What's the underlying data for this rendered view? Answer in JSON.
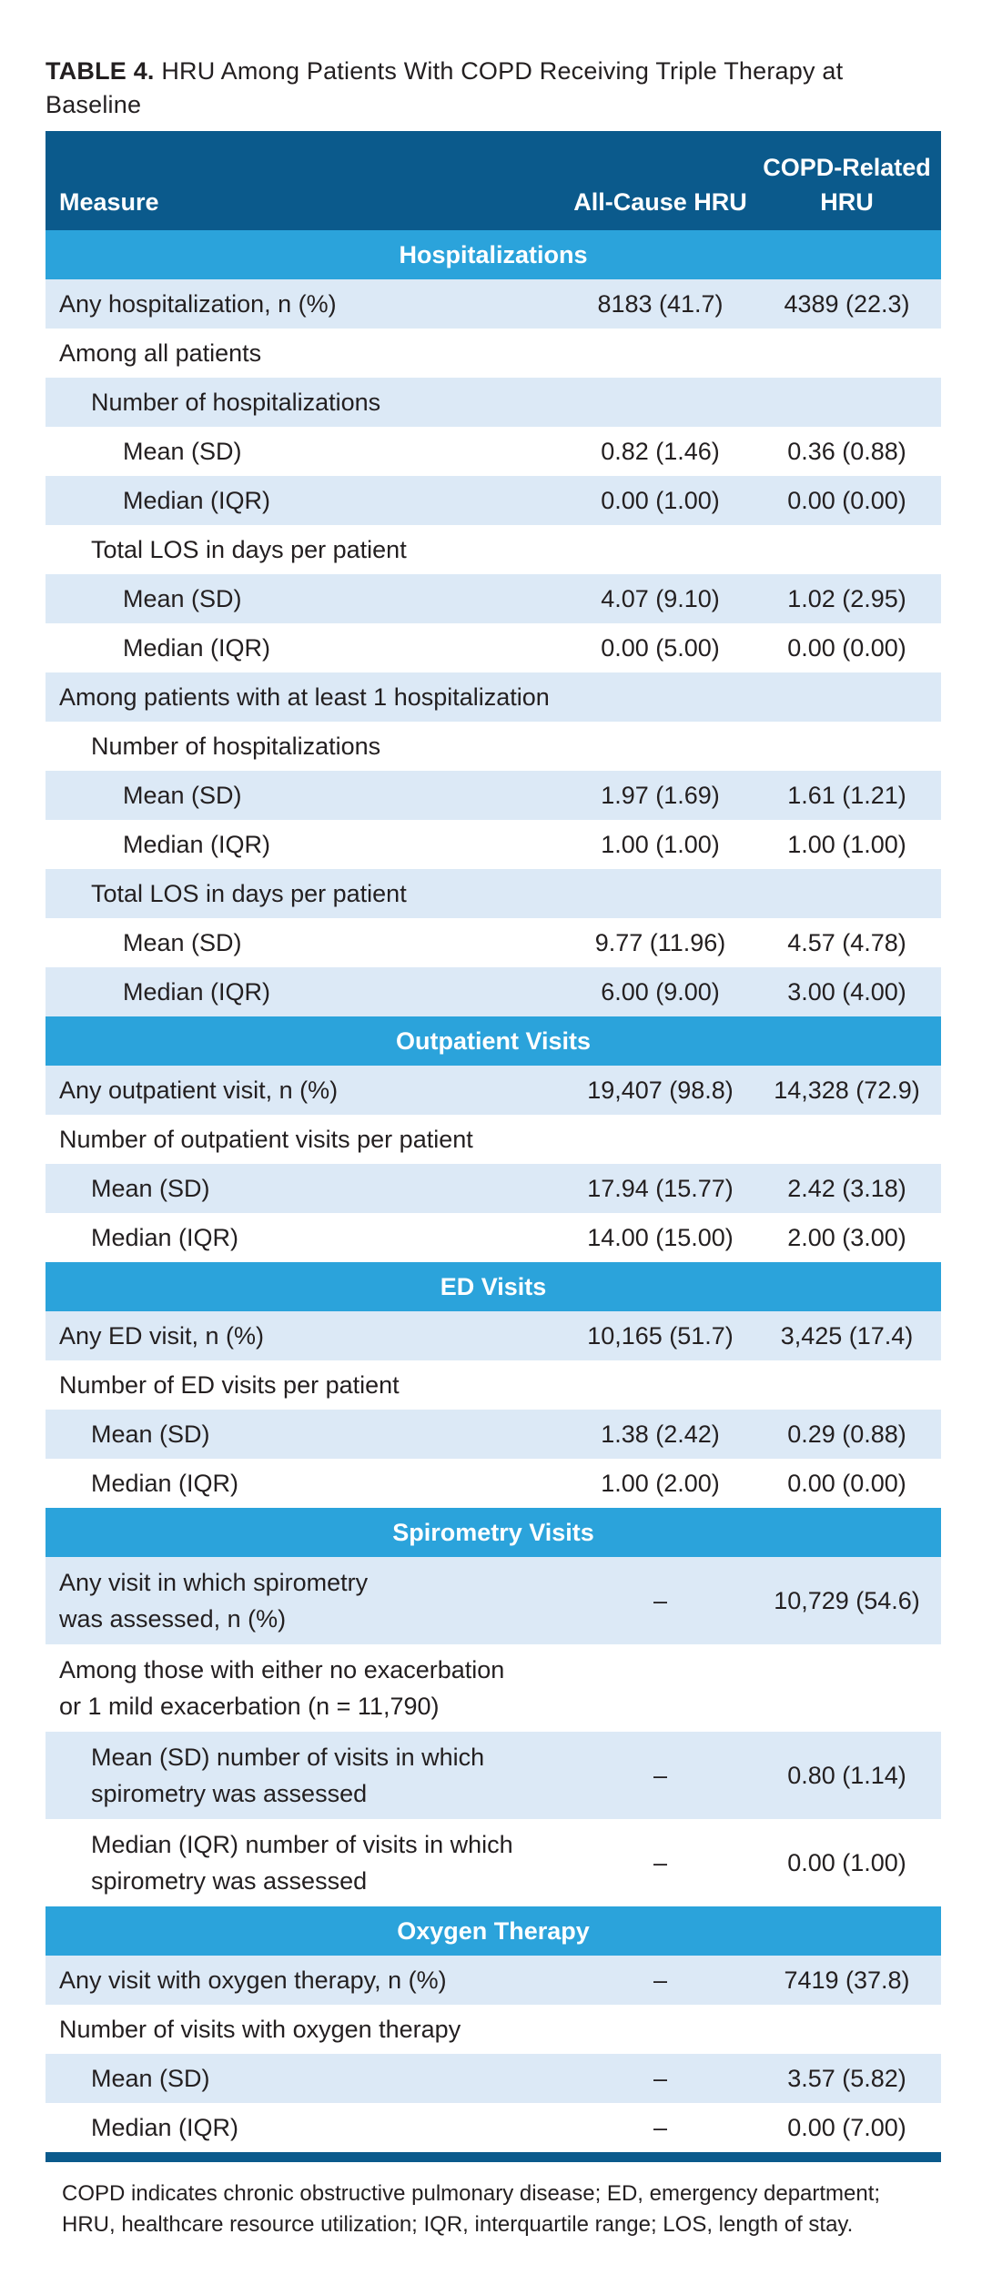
{
  "title": {
    "label": "TABLE 4.",
    "text": "HRU Among Patients With COPD Receiving Triple Therapy at Baseline"
  },
  "header": {
    "measure": "Measure",
    "all_cause": "All-Cause HRU",
    "copd_related": "COPD-Related HRU"
  },
  "rows": [
    {
      "type": "section",
      "label": "Hospitalizations"
    },
    {
      "type": "row",
      "level": 0,
      "label": "Any hospitalization, n (%)",
      "all": "8183 (41.7)",
      "copd": "4389 (22.3)"
    },
    {
      "type": "row",
      "level": 0,
      "label": "Among all patients",
      "all": "",
      "copd": ""
    },
    {
      "type": "row",
      "level": 1,
      "label": "Number of hospitalizations",
      "all": "",
      "copd": ""
    },
    {
      "type": "row",
      "level": 2,
      "label": "Mean (SD)",
      "all": "0.82 (1.46)",
      "copd": "0.36 (0.88)"
    },
    {
      "type": "row",
      "level": 2,
      "label": "Median (IQR)",
      "all": "0.00 (1.00)",
      "copd": "0.00 (0.00)"
    },
    {
      "type": "row",
      "level": 1,
      "label": "Total LOS in days per patient",
      "all": "",
      "copd": ""
    },
    {
      "type": "row",
      "level": 2,
      "label": "Mean (SD)",
      "all": "4.07 (9.10)",
      "copd": "1.02 (2.95)"
    },
    {
      "type": "row",
      "level": 2,
      "label": "Median (IQR)",
      "all": "0.00 (5.00)",
      "copd": "0.00 (0.00)"
    },
    {
      "type": "row",
      "level": 0,
      "label": "Among patients with at least 1 hospitalization",
      "all": "",
      "copd": ""
    },
    {
      "type": "row",
      "level": 1,
      "label": "Number of hospitalizations",
      "all": "",
      "copd": ""
    },
    {
      "type": "row",
      "level": 2,
      "label": "Mean (SD)",
      "all": "1.97 (1.69)",
      "copd": "1.61 (1.21)"
    },
    {
      "type": "row",
      "level": 2,
      "label": "Median (IQR)",
      "all": "1.00 (1.00)",
      "copd": "1.00 (1.00)"
    },
    {
      "type": "row",
      "level": 1,
      "label": "Total LOS in days per patient",
      "all": "",
      "copd": ""
    },
    {
      "type": "row",
      "level": 2,
      "label": "Mean (SD)",
      "all": "9.77 (11.96)",
      "copd": "4.57 (4.78)"
    },
    {
      "type": "row",
      "level": 2,
      "label": "Median (IQR)",
      "all": "6.00 (9.00)",
      "copd": "3.00 (4.00)"
    },
    {
      "type": "section",
      "label": "Outpatient Visits"
    },
    {
      "type": "row",
      "level": 0,
      "label": "Any outpatient visit, n (%)",
      "all": "19,407 (98.8)",
      "copd": "14,328 (72.9)"
    },
    {
      "type": "row",
      "level": 0,
      "label": "Number of outpatient visits per patient",
      "all": "",
      "copd": ""
    },
    {
      "type": "row",
      "level": 1,
      "label": "Mean (SD)",
      "all": "17.94 (15.77)",
      "copd": "2.42 (3.18)"
    },
    {
      "type": "row",
      "level": 1,
      "label": "Median (IQR)",
      "all": "14.00 (15.00)",
      "copd": "2.00 (3.00)"
    },
    {
      "type": "section",
      "label": "ED Visits"
    },
    {
      "type": "row",
      "level": 0,
      "label": "Any ED visit, n (%)",
      "all": "10,165 (51.7)",
      "copd": "3,425 (17.4)"
    },
    {
      "type": "row",
      "level": 0,
      "label": "Number of ED visits per patient",
      "all": "",
      "copd": ""
    },
    {
      "type": "row",
      "level": 1,
      "label": "Mean (SD)",
      "all": "1.38 (2.42)",
      "copd": "0.29 (0.88)"
    },
    {
      "type": "row",
      "level": 1,
      "label": "Median (IQR)",
      "all": "1.00 (2.00)",
      "copd": "0.00 (0.00)"
    },
    {
      "type": "section",
      "label": "Spirometry Visits"
    },
    {
      "type": "row",
      "level": 0,
      "two": true,
      "label": "Any visit in which spirometry\nwas assessed, n (%)",
      "all": "–",
      "copd": "10,729 (54.6)"
    },
    {
      "type": "row",
      "level": 0,
      "two": true,
      "label": "Among those with either no exacerbation\nor 1 mild exacerbation (n = 11,790)",
      "all": "",
      "copd": ""
    },
    {
      "type": "row",
      "level": 1,
      "two": true,
      "label": "Mean (SD) number of visits in which\nspirometry was assessed",
      "all": "–",
      "copd": "0.80 (1.14)"
    },
    {
      "type": "row",
      "level": 1,
      "two": true,
      "label": "Median (IQR) number of visits in which\nspirometry was assessed",
      "all": "–",
      "copd": "0.00 (1.00)"
    },
    {
      "type": "section",
      "label": "Oxygen Therapy"
    },
    {
      "type": "row",
      "level": 0,
      "label": "Any visit with oxygen therapy, n (%)",
      "all": "–",
      "copd": "7419 (37.8)"
    },
    {
      "type": "row",
      "level": 0,
      "label": "Number of visits with oxygen therapy",
      "all": "",
      "copd": ""
    },
    {
      "type": "row",
      "level": 1,
      "label": "Mean (SD)",
      "all": "–",
      "copd": "3.57 (5.82)"
    },
    {
      "type": "row",
      "level": 1,
      "label": "Median (IQR)",
      "all": "–",
      "copd": "0.00 (7.00)"
    }
  ],
  "footnote": "COPD indicates chronic obstructive pulmonary disease; ED, emergency department; HRU, healthcare resource utilization; IQR, interquartile range; LOS, length of stay.",
  "colors": {
    "header_bg": "#0b5a8c",
    "section_bg": "#2ba3db",
    "shade_bg": "#dce9f6"
  }
}
